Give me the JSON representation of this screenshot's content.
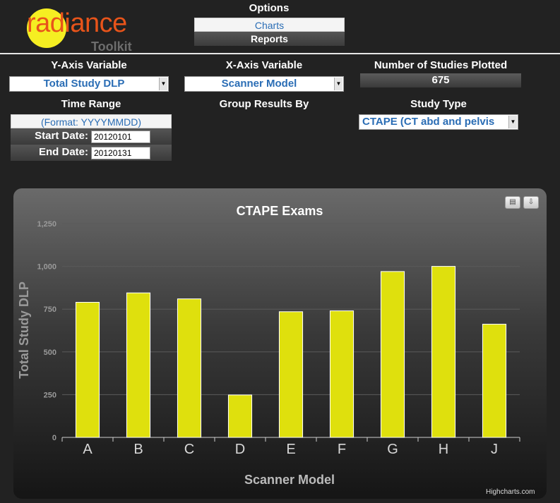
{
  "app": {
    "logo_text": "radiance",
    "logo_subtext": "Toolkit"
  },
  "options": {
    "title": "Options",
    "charts_label": "Charts",
    "reports_label": "Reports"
  },
  "controls": {
    "y_axis_label": "Y-Axis Variable",
    "y_axis_value": "Total Study DLP",
    "x_axis_label": "X-Axis Variable",
    "x_axis_value": "Scanner Model",
    "studies_label": "Number of Studies Plotted",
    "studies_value": "675",
    "time_range_label": "Time Range",
    "time_format": "(Format: YYYYMMDD)",
    "start_label": "Start Date:",
    "start_value": "20120101",
    "end_label": "End Date:",
    "end_value": "20120131",
    "group_label": "Group Results By",
    "study_type_label": "Study Type",
    "study_type_value": "CTAPE (CT abd and pelvis"
  },
  "chart_data": {
    "type": "bar",
    "title": "CTAPE Exams",
    "xlabel": "Scanner Model",
    "ylabel": "Total Study DLP",
    "categories": [
      "A",
      "B",
      "C",
      "D",
      "E",
      "F",
      "G",
      "H",
      "J"
    ],
    "values": [
      790,
      845,
      810,
      248,
      735,
      740,
      970,
      1000,
      662
    ],
    "ylim": [
      0,
      1250
    ],
    "yticks": [
      0,
      250,
      500,
      750,
      1000,
      1250
    ],
    "ytick_labels": [
      "0",
      "250",
      "500",
      "750",
      "1,000",
      "1,250"
    ],
    "bar_color": "#dfe00d",
    "grid": true,
    "legend": "none"
  },
  "chart_ui": {
    "print_icon": "print-icon",
    "export_icon": "download-icon",
    "credit": "Highcharts.com"
  },
  "colors": {
    "background": "#222222",
    "accent_blue": "#2a6db5",
    "logo_orange": "#e8541a",
    "logo_yellow": "#f5ee22"
  }
}
